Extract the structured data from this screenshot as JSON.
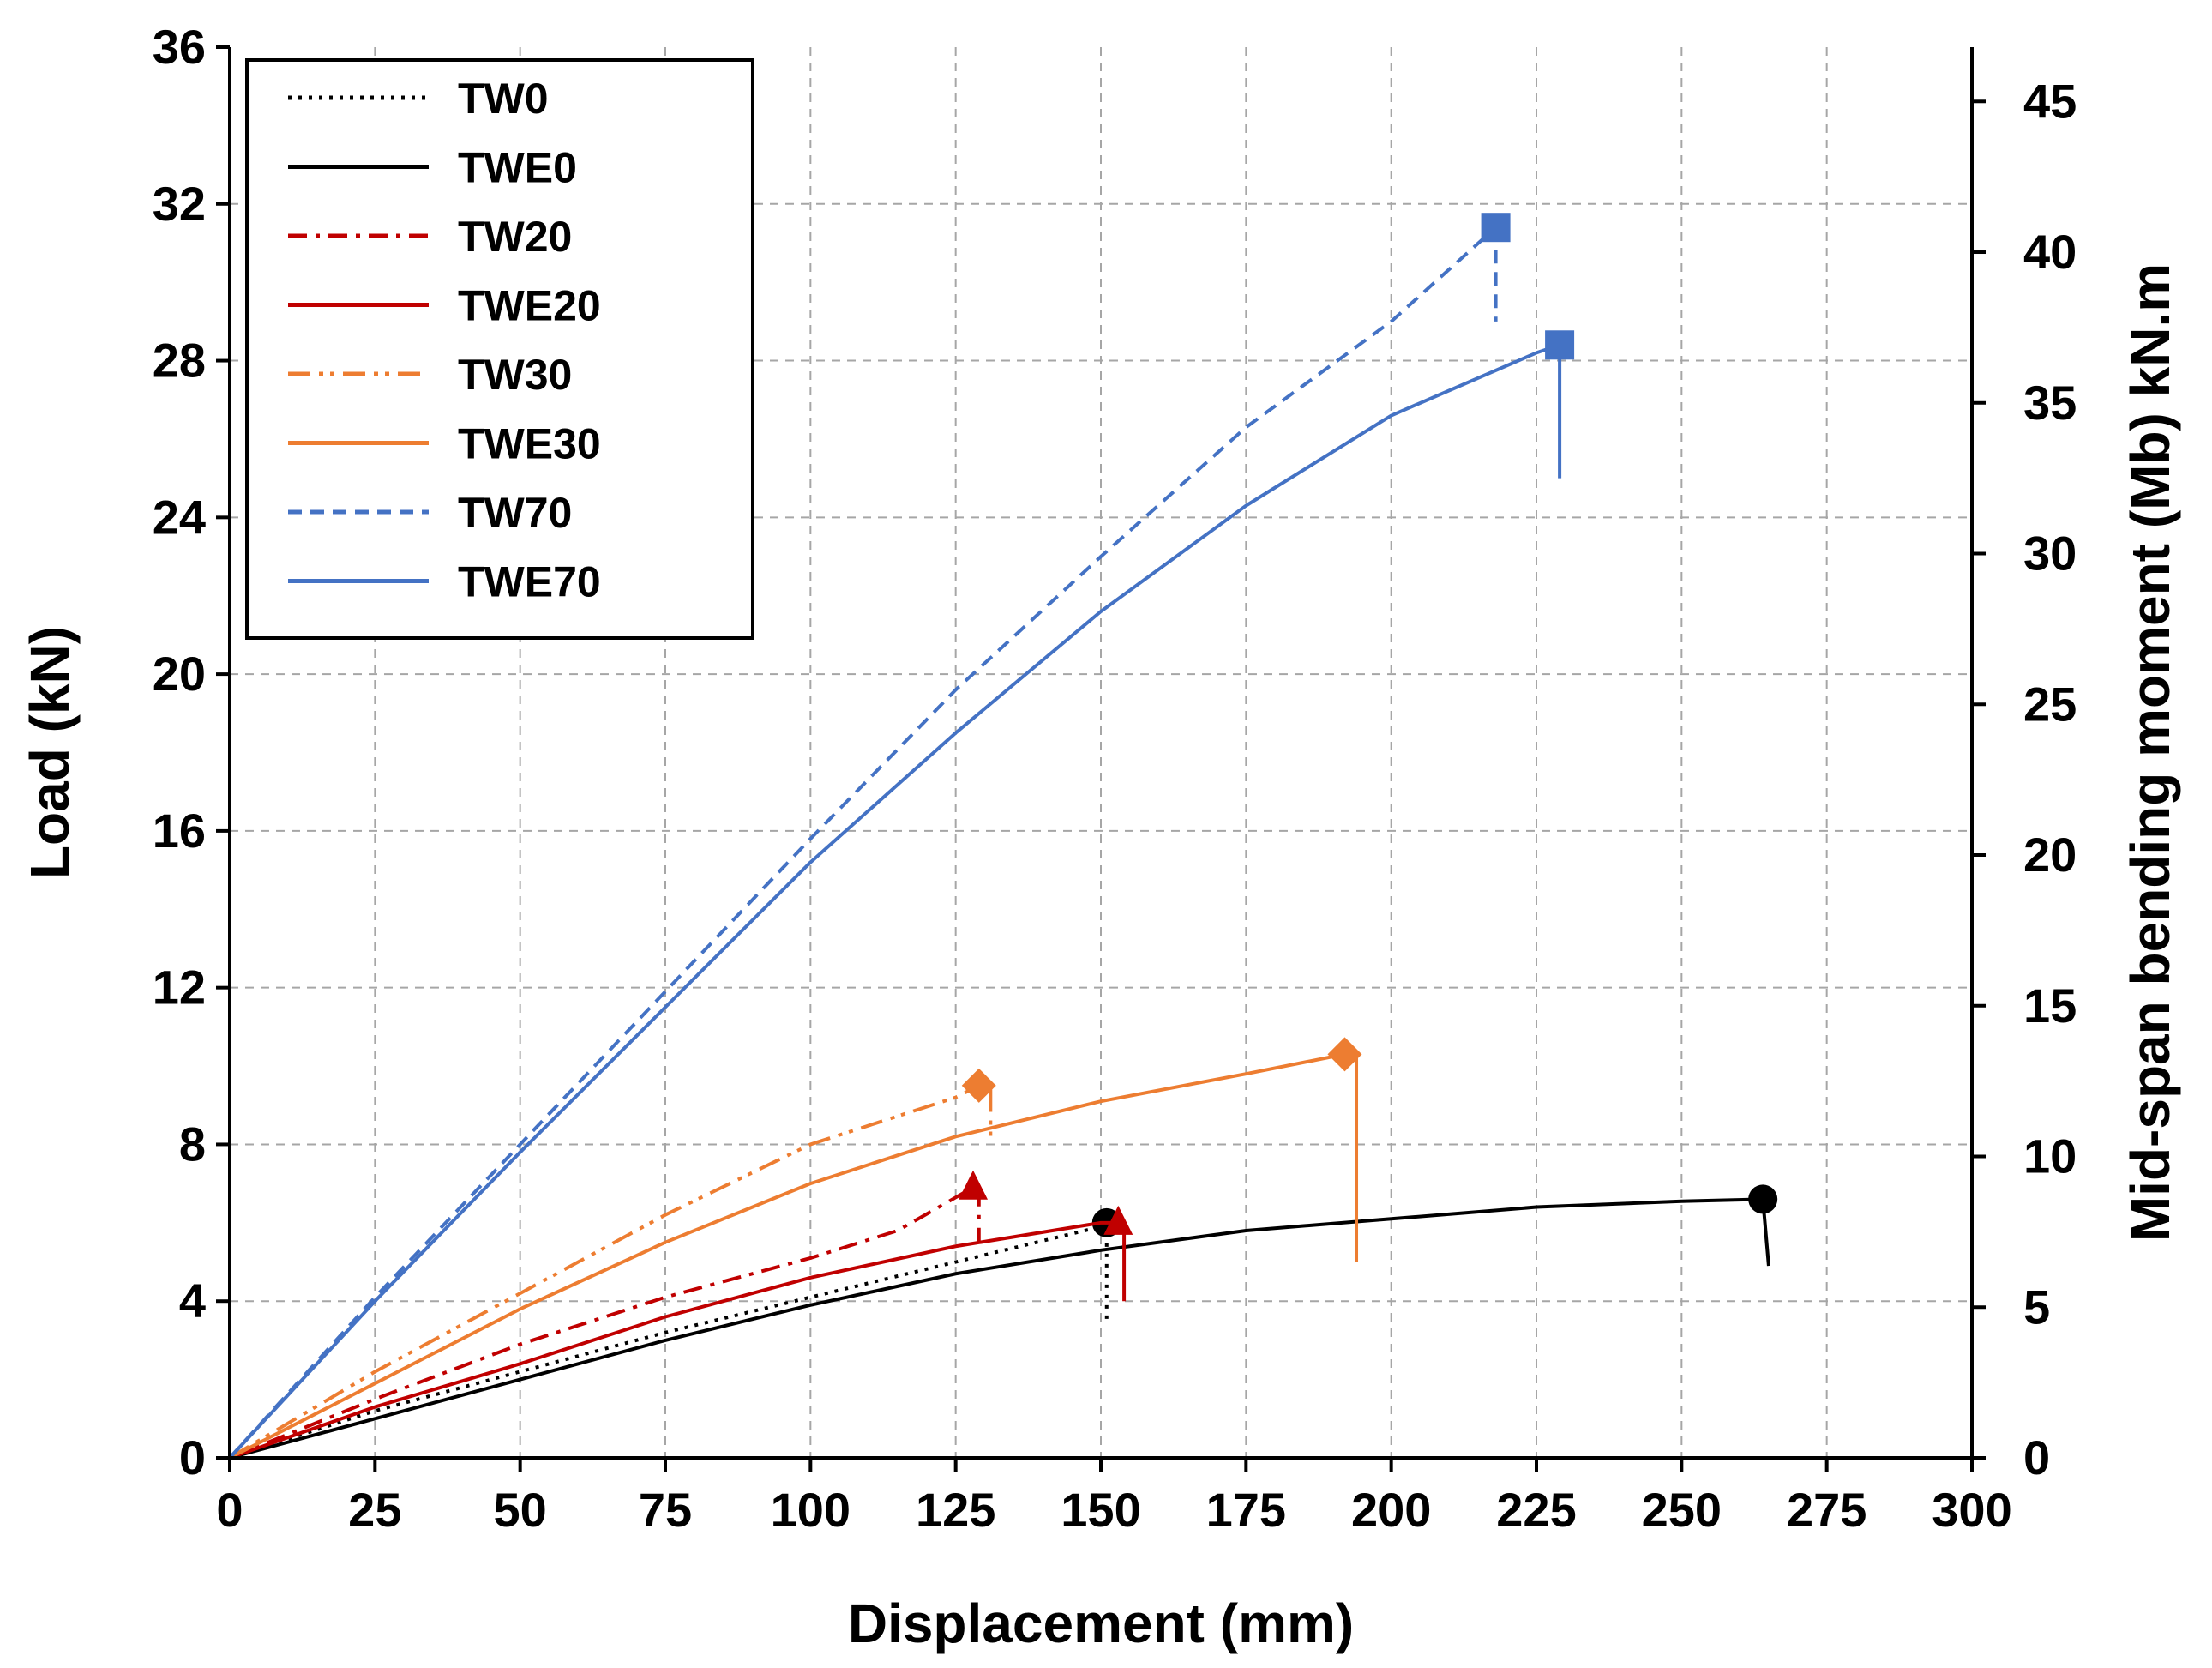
{
  "chart_data": {
    "type": "line",
    "xlabel": "Displacement (mm)",
    "ylabel": "Load (kN)",
    "y2label": "Mid-span bending moment (Mb) kN.m",
    "xlim": [
      0,
      300
    ],
    "ylim": [
      0,
      36
    ],
    "y2lim": [
      0,
      46.8
    ],
    "xticks": [
      0,
      25,
      50,
      75,
      100,
      125,
      150,
      175,
      200,
      225,
      250,
      275,
      300
    ],
    "yticks": [
      0,
      4,
      8,
      12,
      16,
      20,
      24,
      28,
      32,
      36
    ],
    "y2ticks": [
      0,
      5,
      10,
      15,
      20,
      25,
      30,
      35,
      40,
      45
    ],
    "grid": true,
    "legend_position": "top-left",
    "series": [
      {
        "name": "TW0",
        "color": "#000000",
        "dash": "dotted",
        "marker": "circle",
        "points": [
          [
            0,
            0
          ],
          [
            25,
            1.2
          ],
          [
            50,
            2.2
          ],
          [
            75,
            3.2
          ],
          [
            100,
            4.1
          ],
          [
            125,
            5.0
          ],
          [
            150,
            5.9
          ],
          [
            151,
            6.0
          ]
        ],
        "drop": [
          [
            151,
            6.0
          ],
          [
            151,
            3.5
          ]
        ]
      },
      {
        "name": "TWE0",
        "color": "#000000",
        "dash": "solid",
        "marker": "circle",
        "points": [
          [
            0,
            0
          ],
          [
            25,
            1.0
          ],
          [
            50,
            2.0
          ],
          [
            75,
            3.0
          ],
          [
            100,
            3.9
          ],
          [
            125,
            4.7
          ],
          [
            150,
            5.3
          ],
          [
            175,
            5.8
          ],
          [
            200,
            6.1
          ],
          [
            225,
            6.4
          ],
          [
            250,
            6.55
          ],
          [
            264,
            6.6
          ]
        ],
        "drop": [
          [
            264,
            6.6
          ],
          [
            265,
            4.9
          ]
        ]
      },
      {
        "name": "TW20",
        "color": "#c00000",
        "dash": "dashdot",
        "marker": "triangle",
        "points": [
          [
            0,
            0
          ],
          [
            25,
            1.5
          ],
          [
            50,
            2.9
          ],
          [
            75,
            4.1
          ],
          [
            100,
            5.1
          ],
          [
            115,
            5.8
          ],
          [
            128,
            6.9
          ]
        ],
        "drop": [
          [
            129,
            6.9
          ],
          [
            129,
            5.5
          ]
        ]
      },
      {
        "name": "TWE20",
        "color": "#c00000",
        "dash": "solid",
        "marker": "triangle",
        "points": [
          [
            0,
            0
          ],
          [
            25,
            1.3
          ],
          [
            50,
            2.4
          ],
          [
            75,
            3.6
          ],
          [
            100,
            4.6
          ],
          [
            125,
            5.4
          ],
          [
            150,
            6.0
          ],
          [
            153,
            6.0
          ]
        ],
        "drop": [
          [
            154,
            6.0
          ],
          [
            154,
            4.0
          ]
        ]
      },
      {
        "name": "TW30",
        "color": "#ed7d31",
        "dash": "dashdotdot",
        "marker": "diamond",
        "points": [
          [
            0,
            0
          ],
          [
            25,
            2.2
          ],
          [
            50,
            4.2
          ],
          [
            75,
            6.2
          ],
          [
            100,
            8.0
          ],
          [
            125,
            9.2
          ],
          [
            129,
            9.5
          ]
        ],
        "drop": [
          [
            131,
            9.4
          ],
          [
            131,
            8.0
          ]
        ]
      },
      {
        "name": "TWE30",
        "color": "#ed7d31",
        "dash": "solid",
        "marker": "diamond",
        "points": [
          [
            0,
            0
          ],
          [
            25,
            1.9
          ],
          [
            50,
            3.8
          ],
          [
            75,
            5.5
          ],
          [
            100,
            7.0
          ],
          [
            125,
            8.2
          ],
          [
            150,
            9.1
          ],
          [
            175,
            9.8
          ],
          [
            192,
            10.3
          ]
        ],
        "drop": [
          [
            194,
            10.3
          ],
          [
            194,
            5.0
          ]
        ]
      },
      {
        "name": "TW70",
        "color": "#4472c4",
        "dash": "dashed",
        "marker": "square",
        "points": [
          [
            0,
            0
          ],
          [
            25,
            4.1
          ],
          [
            50,
            8.0
          ],
          [
            75,
            11.9
          ],
          [
            100,
            15.8
          ],
          [
            125,
            19.6
          ],
          [
            150,
            23.0
          ],
          [
            175,
            26.3
          ],
          [
            200,
            29.0
          ],
          [
            218,
            31.4
          ]
        ],
        "drop": [
          [
            218,
            31.4
          ],
          [
            218,
            29.0
          ]
        ]
      },
      {
        "name": "TWE70",
        "color": "#4472c4",
        "dash": "solid",
        "marker": "square",
        "points": [
          [
            0,
            0
          ],
          [
            25,
            4.0
          ],
          [
            50,
            7.8
          ],
          [
            75,
            11.5
          ],
          [
            100,
            15.2
          ],
          [
            125,
            18.5
          ],
          [
            150,
            21.6
          ],
          [
            175,
            24.3
          ],
          [
            200,
            26.6
          ],
          [
            225,
            28.2
          ],
          [
            229,
            28.4
          ]
        ],
        "drop": [
          [
            229,
            28.4
          ],
          [
            229,
            25.0
          ]
        ]
      }
    ]
  }
}
